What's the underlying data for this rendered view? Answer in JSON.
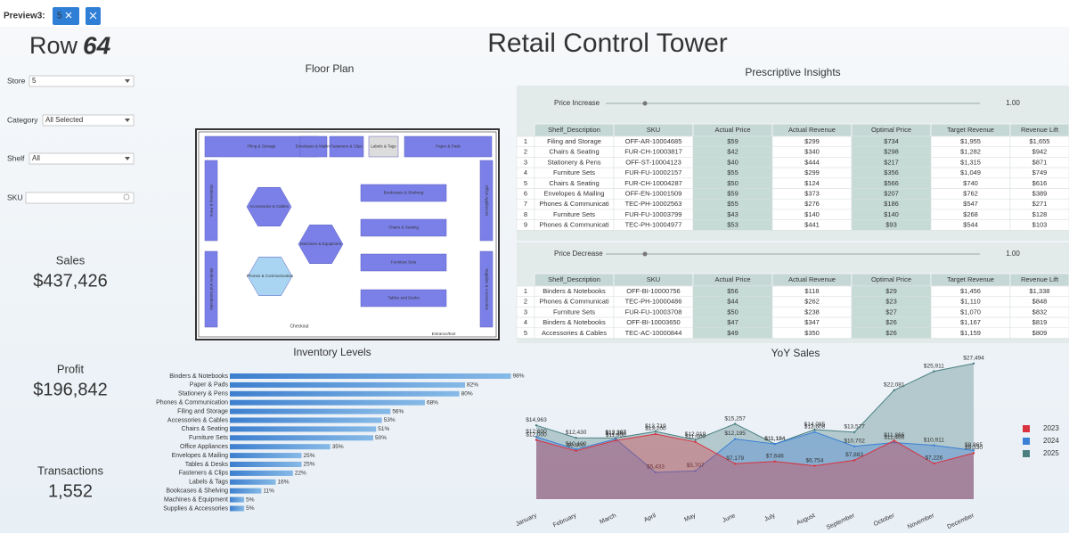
{
  "preview": {
    "label": "Preview3:",
    "chip": "5"
  },
  "logo": {
    "text": "Row",
    "accent": "64"
  },
  "title": "Retail Control Tower",
  "filters": [
    {
      "label": "Store",
      "value": "5"
    },
    {
      "label": "Category",
      "value": "All Selected"
    },
    {
      "label": "Shelf",
      "value": "All"
    },
    {
      "label": "SKU"
    }
  ],
  "kpis": [
    {
      "label": "Sales",
      "value": "$437,426"
    },
    {
      "label": "Profit",
      "value": "$196,842"
    },
    {
      "label": "Transactions",
      "value": "1,552"
    }
  ],
  "floor_plan": {
    "title": "Floor Plan",
    "zones": [
      "Filing & Storage",
      "Envelopes & Mailing",
      "Fasteners & Clips",
      "Labels & Tags",
      "Paper & Pads",
      "Stationery & Pens",
      "Binders and Notebooks",
      "Office Appliances",
      "Supplies & Accessories",
      "Accessories & Cables",
      "Machines & Equipment",
      "Phones & Communication",
      "Bookcases & Shelving",
      "Chairs & Seating",
      "Furniture Sets",
      "Tables and Desks"
    ],
    "checkout": "Checkout",
    "entrance": "Entrance/Exit"
  },
  "insights": {
    "title": "Prescriptive Insights",
    "columns": [
      "Shelf_Description",
      "SKU",
      "Actual Price",
      "Actual Revenue",
      "Optimal Price",
      "Target Revenue",
      "Revenue Lift"
    ],
    "tables": [
      {
        "slider_label": "Price Increase",
        "slider_value": "1.00",
        "rows": [
          [
            "1",
            "Filing and Storage",
            "OFF-AR-10004685",
            "$59",
            "$299",
            "$734",
            "$1,955",
            "$1,655"
          ],
          [
            "2",
            "Chairs & Seating",
            "FUR-CH-10003817",
            "$42",
            "$340",
            "$298",
            "$1,282",
            "$942"
          ],
          [
            "3",
            "Stationery & Pens",
            "OFF-ST-10004123",
            "$40",
            "$444",
            "$217",
            "$1,315",
            "$871"
          ],
          [
            "4",
            "Furniture Sets",
            "FUR-FU-10002157",
            "$55",
            "$299",
            "$356",
            "$1,049",
            "$749"
          ],
          [
            "5",
            "Chairs & Seating",
            "FUR-CH-10004287",
            "$50",
            "$124",
            "$566",
            "$740",
            "$616"
          ],
          [
            "6",
            "Envelopes & Mailing",
            "OFF-EN-10001509",
            "$59",
            "$373",
            "$207",
            "$762",
            "$389"
          ],
          [
            "7",
            "Phones & Communicati",
            "TEC-PH-10002563",
            "$55",
            "$276",
            "$186",
            "$547",
            "$271"
          ],
          [
            "8",
            "Furniture Sets",
            "FUR-FU-10003799",
            "$43",
            "$140",
            "$140",
            "$268",
            "$128"
          ],
          [
            "9",
            "Phones & Communicati",
            "TEC-PH-10004977",
            "$53",
            "$441",
            "$93",
            "$544",
            "$103"
          ]
        ]
      },
      {
        "slider_label": "Price Decrease",
        "slider_value": "1.00",
        "rows": [
          [
            "1",
            "Binders & Notebooks",
            "OFF-BI-10000756",
            "$56",
            "$118",
            "$29",
            "$1,456",
            "$1,338"
          ],
          [
            "2",
            "Phones & Communicati",
            "TEC-PH-10000486",
            "$44",
            "$262",
            "$23",
            "$1,110",
            "$848"
          ],
          [
            "3",
            "Furniture Sets",
            "FUR-FU-10003708",
            "$50",
            "$238",
            "$27",
            "$1,070",
            "$832"
          ],
          [
            "4",
            "Binders & Notebooks",
            "OFF-BI-10003650",
            "$47",
            "$347",
            "$26",
            "$1,167",
            "$819"
          ],
          [
            "5",
            "Accessories & Cables",
            "TEC-AC-10000844",
            "$49",
            "$350",
            "$26",
            "$1,159",
            "$809"
          ]
        ]
      }
    ]
  },
  "chart_data": [
    {
      "type": "bar",
      "orientation": "horizontal",
      "title": "Inventory Levels",
      "color": "#4a8fd6",
      "categories": [
        "Binders & Notebooks",
        "Paper & Pads",
        "Stationery & Pens",
        "Phones & Communication",
        "Filing and Storage",
        "Accessories & Cables",
        "Chairs & Seating",
        "Furniture Sets",
        "Office Appliances",
        "Envelopes & Mailing",
        "Tables & Desks",
        "Fasteners & Clips",
        "Labels & Tags",
        "Bookcases & Shelving",
        "Machines & Equipment",
        "Supplies & Accessories"
      ],
      "values": [
        98,
        82,
        80,
        68,
        56,
        53,
        51,
        50,
        35,
        25,
        25,
        22,
        16,
        11,
        5,
        5
      ],
      "value_labels": [
        "98%",
        "82%",
        "80%",
        "68%",
        "56%",
        "53%",
        "51%",
        "50%",
        "35%",
        "25%",
        "25%",
        "22%",
        "16%",
        "11%",
        "5%",
        "5%"
      ],
      "xlim": [
        0,
        100
      ]
    },
    {
      "type": "area",
      "title": "YoY Sales",
      "categories": [
        "January",
        "February",
        "March",
        "April",
        "May",
        "June",
        "July",
        "August",
        "September",
        "October",
        "November",
        "December"
      ],
      "ylim": [
        0,
        30000
      ],
      "series": [
        {
          "name": "2025",
          "color": "#4a7f80",
          "values": [
            14963,
            12430,
            12397,
            13719,
            12019,
            15257,
            11184,
            14085,
            13577,
            22081,
            25911,
            27494
          ],
          "value_labels": [
            "$14,963",
            "$12,430",
            "$12,397",
            "$13,719",
            "$12,019",
            "$15,257",
            "$11,184",
            "$14,085",
            "$13,577",
            "$22,081",
            "$25,911",
            "$27,494"
          ]
        },
        {
          "name": "2024",
          "color": "#3b7fd6",
          "values": [
            12600,
            10100,
            12200,
            5433,
            5707,
            12195,
            11184,
            13608,
            10702,
            11466,
            10911,
            9865
          ],
          "value_labels": [
            "$12,600",
            "$10,100",
            "$12,200",
            "$5,433",
            "$5,707",
            "$12,195",
            "$11,184",
            "$13,608",
            "$10,702",
            "$11,466",
            "$10,911",
            "$9,865"
          ]
        },
        {
          "name": "2023",
          "color": "#d9333f",
          "values": [
            12000,
            9800,
            11900,
            13200,
            11600,
            7179,
            7646,
            6754,
            7883,
            11866,
            7226,
            9330
          ],
          "value_labels": [
            "$12,000",
            "$9,800",
            "$11,900",
            "$13,200",
            "$11,600",
            "$7,179",
            "$7,646",
            "$6,754",
            "$7,883",
            "$11,866",
            "$7,226",
            "$9,330"
          ]
        }
      ]
    }
  ]
}
